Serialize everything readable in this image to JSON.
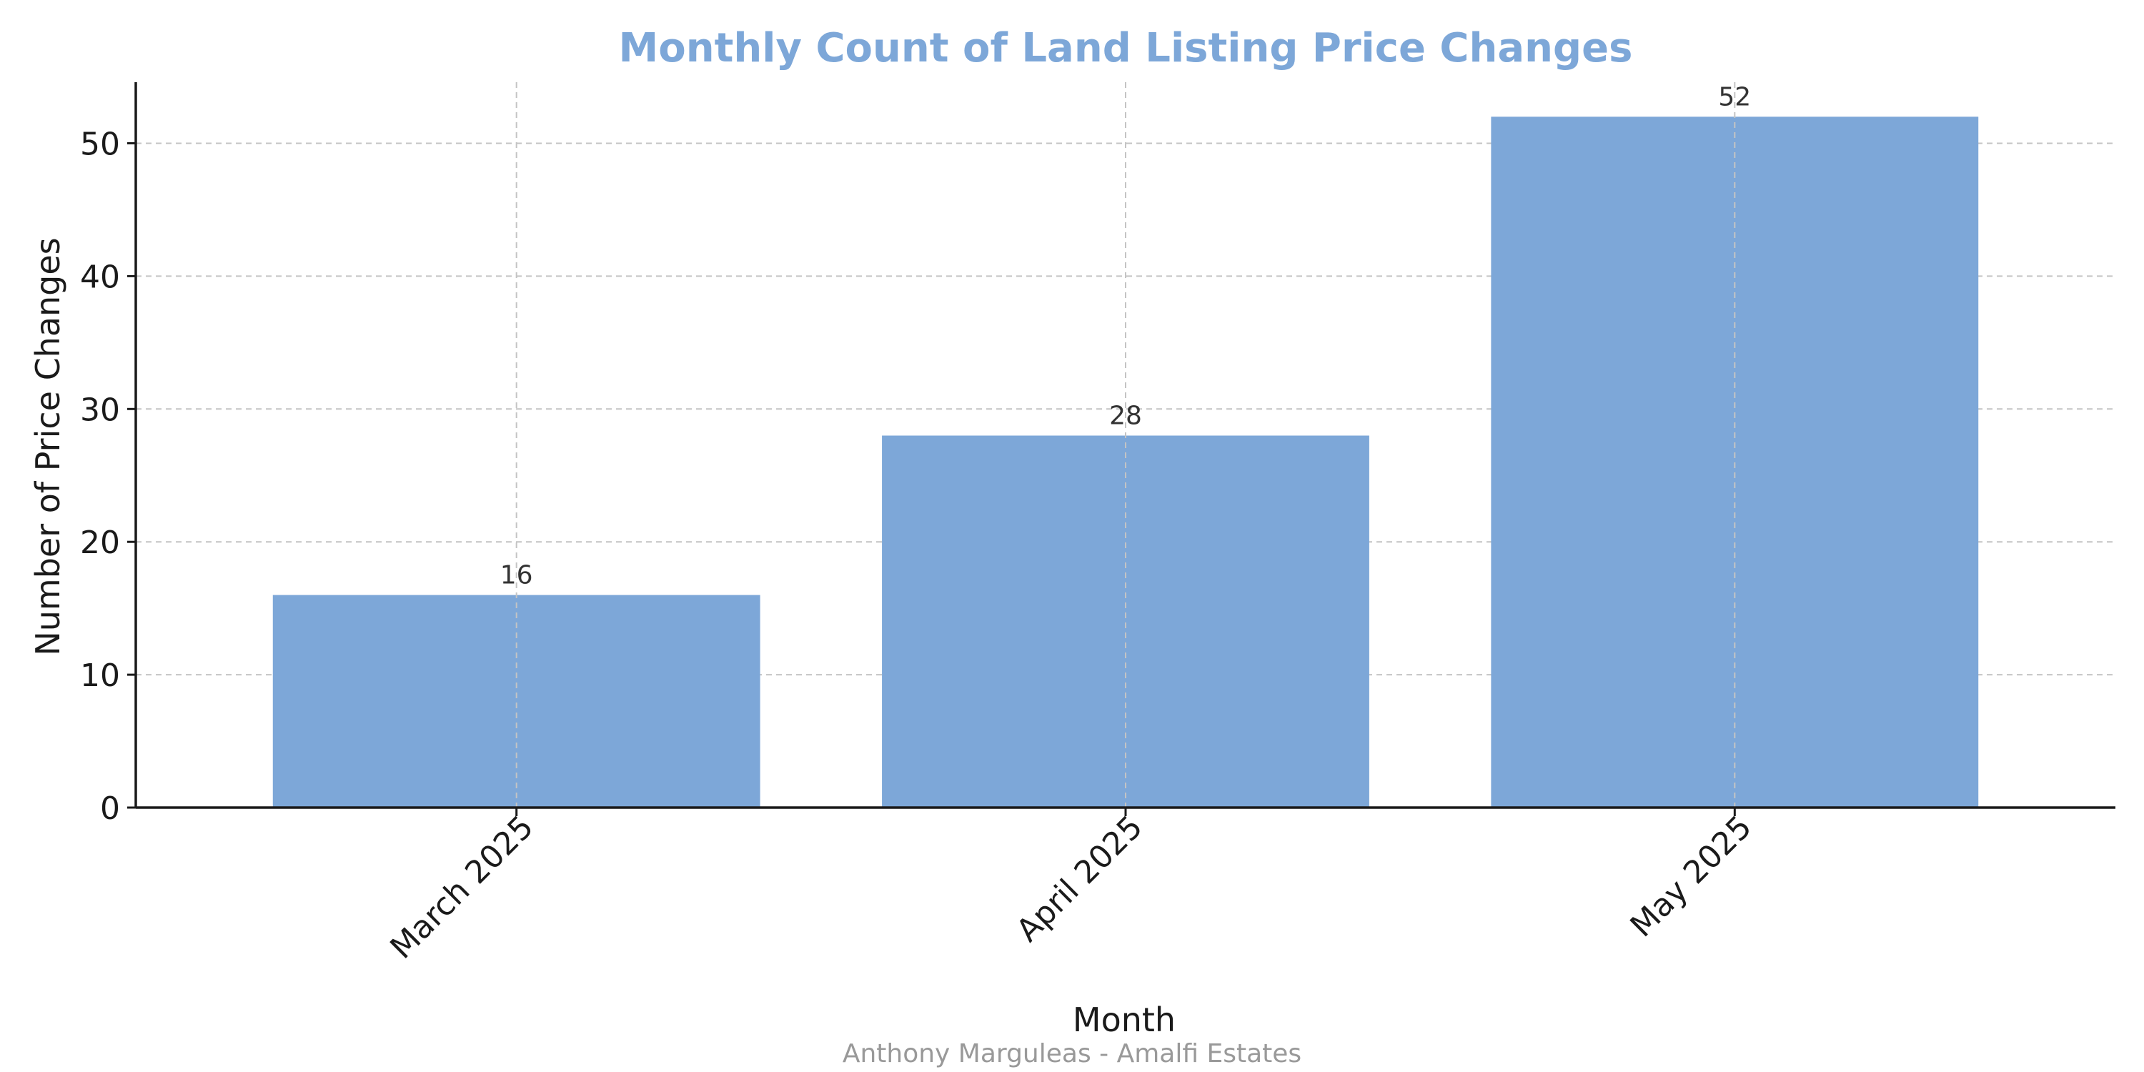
{
  "colors": {
    "bar": "#7da7d8",
    "title": "#7da7d8",
    "footer": "#999999"
  },
  "chart_data": {
    "type": "bar",
    "title": "Monthly Count of Land Listing Price Changes",
    "xlabel": "Month",
    "ylabel": "Number of Price Changes",
    "categories": [
      "March 2025",
      "April 2025",
      "May 2025"
    ],
    "values": [
      16,
      28,
      52
    ],
    "data_labels": [
      "16",
      "28",
      "52"
    ],
    "yticks": [
      0,
      10,
      20,
      30,
      40,
      50
    ],
    "ytick_labels": [
      "0",
      "10",
      "20",
      "30",
      "40",
      "50"
    ],
    "ylim": [
      0,
      54.6
    ],
    "grid": true,
    "legend": "none"
  },
  "footer": {
    "credit": "Anthony Marguleas - Amalfi Estates"
  }
}
